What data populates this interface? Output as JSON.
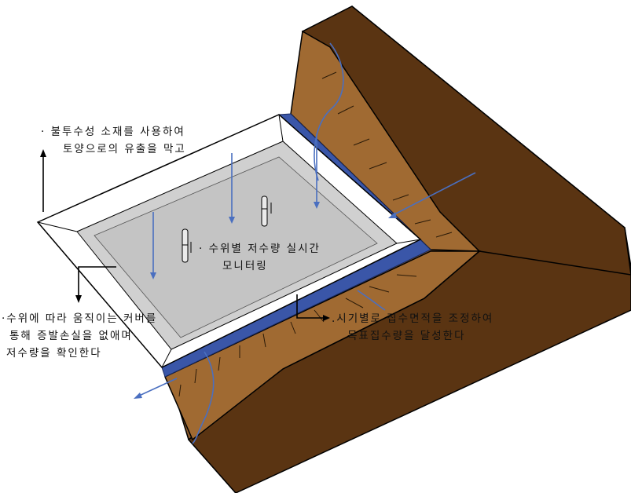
{
  "annotations": {
    "material": {
      "line1": "· 불투수성 소재를 사용하여",
      "line2": "토양으로의 유출을 막고"
    },
    "monitoring": {
      "line1": "· 수위별 저수량 실시간",
      "line2": "모니터링"
    },
    "cover": {
      "line1": "·수위에 따라 움직이는 커버를",
      "line2": "통해 증발손실을 없애며",
      "line3": "저수량을 확인한다"
    },
    "catchment": {
      "line1": ".시기별로 집수면적을 조정하여",
      "line2": "목표집수량을 달성한다"
    }
  },
  "colors": {
    "soil": "#8b5a2b",
    "soil_dark": "#5a3412",
    "liner": "#3a56a8",
    "water": "#d0d0d0",
    "arrow_blue": "#4a6fc0"
  }
}
